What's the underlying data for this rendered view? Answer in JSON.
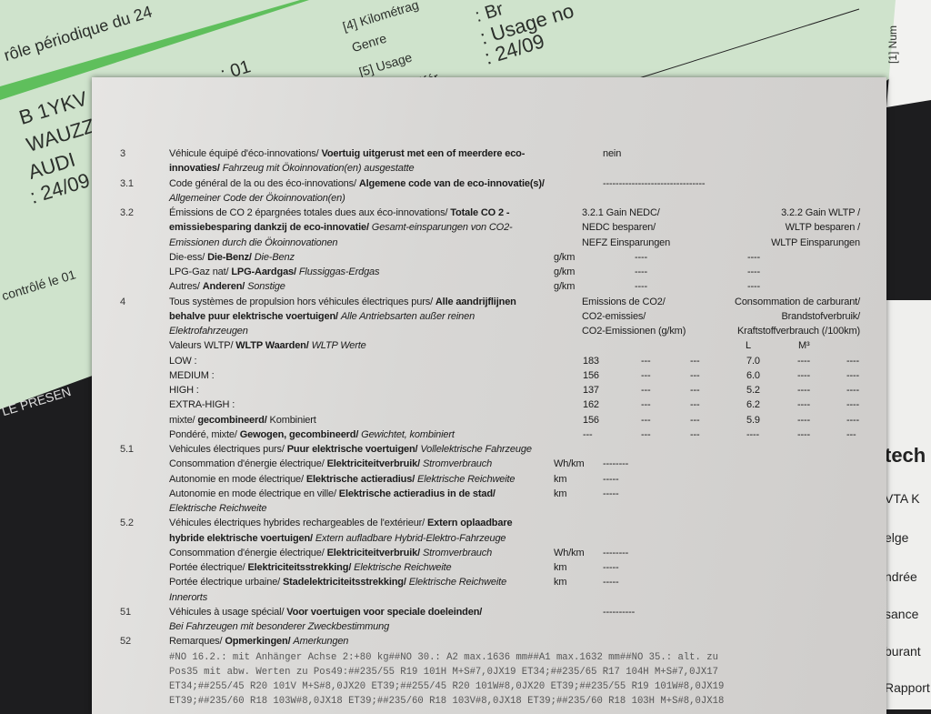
{
  "background_paper": {
    "left_lines": [
      "rôle périodique du 24",
      "B 1YKV",
      "WAUZZ",
      "AUDI",
      ": 24/09",
      "contrôlé le 01",
      "LE PRESEN"
    ],
    "top_lines": [
      "[4] Kilométrag",
      "Genre",
      "[5] Usage",
      "référ",
      ": Usage no",
      ": 24/09",
      ": Br",
      ": 01",
      "[1] Num"
    ]
  },
  "right_paper": [
    "tech",
    "VTA K",
    "elge",
    "ndrée",
    "sance",
    "burant",
    "Rapport"
  ],
  "lines": [
    {
      "num": "3",
      "seg": [
        [
          "r",
          "Véhicule équipé d'éco-innovations/ "
        ],
        [
          "b",
          "Voertuig uitgerust met een of meerdere eco-"
        ]
      ],
      "kind": "single",
      "extra": [
        "nein"
      ]
    },
    {
      "seg": [
        [
          "b",
          "innovaties/ "
        ],
        [
          "i",
          "Fahrzeug mit Ökoinnovation(en) ausgestatte"
        ]
      ]
    },
    {
      "num": "3.1",
      "seg": [
        [
          "r",
          "Code général de la ou des éco-innovations/ "
        ],
        [
          "b",
          "Algemene code van de eco-innovatie(s)/"
        ]
      ],
      "kind": "single",
      "extra": [
        "--------------------------------"
      ]
    },
    {
      "seg": [
        [
          "i",
          "Allgemeiner Code der Ökoinnovation(en)"
        ]
      ]
    },
    {
      "num": "3.2",
      "seg": [
        [
          "r",
          "Émissions de CO 2 épargnées totales dues aux éco-innovations/ "
        ],
        [
          "b",
          "Totale CO 2 -"
        ]
      ],
      "kind": "gain",
      "extra": [
        "3.2.1 Gain NEDC/",
        "3.2.2 Gain WLTP /"
      ]
    },
    {
      "seg": [
        [
          "b",
          "emissiebesparing dankzij de eco-innovatie/ "
        ],
        [
          "i",
          "Gesamt-einsparungen von CO2-"
        ]
      ],
      "kind": "gain",
      "extra": [
        "NEDC besparen/",
        "WLTP besparen /"
      ]
    },
    {
      "seg": [
        [
          "i",
          "Emissionen durch die Ökoinnovationen"
        ]
      ],
      "kind": "gain",
      "extra": [
        "NEFZ Einsparungen",
        "WLTP Einsparungen"
      ]
    },
    {
      "seg": [
        [
          "r",
          "Die-ess/ "
        ],
        [
          "b",
          "Die-Benz/ "
        ],
        [
          "i",
          "Die-Benz"
        ]
      ],
      "kind": "unit3",
      "extra": [
        "g/km",
        "----",
        "----"
      ]
    },
    {
      "seg": [
        [
          "r",
          "LPG-Gaz nat/ "
        ],
        [
          "b",
          "LPG-Aardgas/ "
        ],
        [
          "i",
          "Flussiggas-Erdgas"
        ]
      ],
      "kind": "unit3",
      "extra": [
        "g/km",
        "----",
        "----"
      ]
    },
    {
      "seg": [
        [
          "r",
          "Autres/ "
        ],
        [
          "b",
          "Anderen/ "
        ],
        [
          "i",
          "Sonstige"
        ]
      ],
      "kind": "unit3",
      "extra": [
        "g/km",
        "----",
        "----"
      ]
    },
    {
      "num": "4",
      "seg": [
        [
          "r",
          "Tous systèmes de propulsion hors véhicules électriques purs/ "
        ],
        [
          "b",
          "Alle aandrijflijnen"
        ]
      ],
      "kind": "gain",
      "extra": [
        "Emissions de CO2/",
        "Consommation de carburant/"
      ]
    },
    {
      "seg": [
        [
          "b",
          "behalve puur elektrische voertuigen/ "
        ],
        [
          "i",
          "Alle Antriebsarten außer reinen"
        ]
      ],
      "kind": "gain",
      "extra": [
        "CO2-emissies/",
        "Brandstofverbruik/"
      ]
    },
    {
      "seg": [
        [
          "i",
          "Elektrofahrzeugen"
        ]
      ],
      "kind": "gain",
      "extra": [
        "CO2-Emissionen (g/km)",
        "Kraftstoffverbrauch (/100km)"
      ]
    },
    {
      "seg": [
        [
          "r",
          "Valeurs WLTP/ "
        ],
        [
          "b",
          "WLTP Waarden/ "
        ],
        [
          "i",
          "WLTP Werte"
        ]
      ],
      "kind": "lm",
      "extra": [
        "L",
        "M³"
      ]
    },
    {
      "seg": [
        [
          "r",
          "LOW :"
        ]
      ],
      "kind": "wltp",
      "extra": [
        "183",
        "---",
        "---",
        "7.0",
        "----",
        "----"
      ]
    },
    {
      "seg": [
        [
          "r",
          "MEDIUM :"
        ]
      ],
      "kind": "wltp",
      "extra": [
        "156",
        "---",
        "---",
        "6.0",
        "----",
        "----"
      ]
    },
    {
      "seg": [
        [
          "r",
          "HIGH :"
        ]
      ],
      "kind": "wltp",
      "extra": [
        "137",
        "---",
        "---",
        "5.2",
        "----",
        "----"
      ]
    },
    {
      "seg": [
        [
          "r",
          "EXTRA-HIGH :"
        ]
      ],
      "kind": "wltp",
      "extra": [
        "162",
        "---",
        "---",
        "6.2",
        "----",
        "----"
      ]
    },
    {
      "seg": [
        [
          "r",
          "mixte/ "
        ],
        [
          "b",
          "gecombineerd/ "
        ],
        [
          "r",
          "Kombiniert"
        ]
      ],
      "kind": "wltp",
      "extra": [
        "156",
        "---",
        "---",
        "5.9",
        "----",
        "----"
      ]
    },
    {
      "seg": [
        [
          "r",
          "Pondéré, mixte/ "
        ],
        [
          "b",
          "Gewogen, gecombineerd/ "
        ],
        [
          "i",
          "Gewichtet, kombiniert"
        ]
      ],
      "kind": "wltp",
      "extra": [
        "---",
        "---",
        "---",
        "----",
        "----",
        "---"
      ]
    },
    {
      "num": "5.1",
      "seg": [
        [
          "r",
          "Vehicules électriques purs/ "
        ],
        [
          "b",
          "Puur elektrische voertuigen/ "
        ],
        [
          "i",
          "Vollelektrische Fahrzeuge"
        ]
      ]
    },
    {
      "seg": [
        [
          "r",
          "Consommation d'énergie électrique/ "
        ],
        [
          "b",
          "Elektriciteitverbruik/ "
        ],
        [
          "i",
          "Stromverbrauch"
        ]
      ],
      "kind": "unitdash",
      "extra": [
        "Wh/km",
        "--------"
      ]
    },
    {
      "seg": [
        [
          "r",
          "Autonomie en mode électrique/ "
        ],
        [
          "b",
          "Elektrische actieradius/ "
        ],
        [
          "i",
          "Elektrische Reichweite"
        ]
      ],
      "kind": "unitdash",
      "extra": [
        "km",
        "-----"
      ]
    },
    {
      "seg": [
        [
          "r",
          "Autonomie en mode électrique en ville/ "
        ],
        [
          "b",
          "Elektrische actieradius in de stad/"
        ]
      ],
      "kind": "unitdash",
      "extra": [
        "km",
        "-----"
      ]
    },
    {
      "seg": [
        [
          "i",
          "Elektrische Reichweite"
        ]
      ]
    },
    {
      "num": "5.2",
      "seg": [
        [
          "r",
          "Véhicules électriques hybrides rechargeables de l'extérieur/ "
        ],
        [
          "b",
          "Extern oplaadbare"
        ]
      ]
    },
    {
      "seg": [
        [
          "b",
          "hybride elektrische voertuigen/ "
        ],
        [
          "i",
          "Extern aufladbare Hybrid-Elektro-Fahrzeuge"
        ]
      ]
    },
    {
      "seg": [
        [
          "r",
          "Consommation d'énergie électrique/ "
        ],
        [
          "b",
          "Elektriciteitverbruik/ "
        ],
        [
          "i",
          "Stromverbrauch"
        ]
      ],
      "kind": "unitdash",
      "extra": [
        "Wh/km",
        "--------"
      ]
    },
    {
      "seg": [
        [
          "r",
          "Portée électrique/ "
        ],
        [
          "b",
          "Elektriciteitsstrekking/ "
        ],
        [
          "i",
          "Elektrische Reichweite"
        ]
      ],
      "kind": "unitdash",
      "extra": [
        "km",
        "-----"
      ]
    },
    {
      "seg": [
        [
          "r",
          "Portée électrique urbaine/ "
        ],
        [
          "b",
          "Stadelektriciteitsstrekking/ "
        ],
        [
          "i",
          "Elektrische Reichweite"
        ]
      ],
      "kind": "unitdash",
      "extra": [
        "km",
        "-----"
      ]
    },
    {
      "seg": [
        [
          "i",
          "Innerorts"
        ]
      ]
    },
    {
      "num": "51",
      "seg": [
        [
          "r",
          "Véhicules à usage spécial/ "
        ],
        [
          "b",
          "Voor voertuigen voor speciale doeleinden/"
        ]
      ],
      "kind": "single",
      "extra": [
        "----------"
      ]
    },
    {
      "seg": [
        [
          "i",
          "Bei Fahrzeugen mit besonderer Zweckbestimmung"
        ]
      ]
    },
    {
      "num": "52",
      "seg": [
        [
          "r",
          "Remarques/ "
        ],
        [
          "b",
          "Opmerkingen/ "
        ],
        [
          "i",
          "Amerkungen"
        ]
      ]
    },
    {
      "seg": [
        [
          "m",
          "#NO 16.2.: mit Anhänger Achse 2:+80 kg##NO 30.: A2 max.1636 mm##A1 max.1632 mm##NO 35.: alt. zu"
        ]
      ]
    },
    {
      "seg": [
        [
          "m",
          "Pos35 mit abw. Werten zu Pos49:##235/55 R19 101H M+S#7,0JX19 ET34;##235/65 R17 104H M+S#7,0JX17"
        ]
      ]
    },
    {
      "seg": [
        [
          "m",
          "ET34;##255/45 R20 101V M+S#8,0JX20 ET39;##255/45 R20 101W#8,0JX20 ET39;##235/55 R19 101W#8,0JX19"
        ]
      ]
    },
    {
      "seg": [
        [
          "m",
          "ET39;##235/60 R18 103W#8,0JX18 ET39;##235/60 R18 103V#8,0JX18 ET39;##235/60 R18 103H M+S#8,0JX18"
        ]
      ]
    }
  ]
}
